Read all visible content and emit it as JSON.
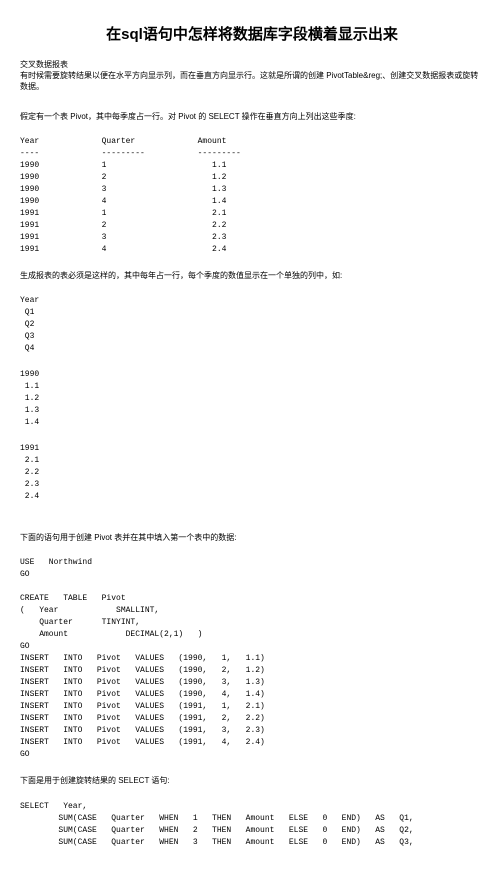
{
  "title": "在sql语句中怎样将数据库字段横着显示出来",
  "section_heading": "交叉数据报表",
  "intro": "有时候需要旋转结果以便在水平方向显示列，而在垂直方向显示行。这就是所谓的创建  PivotTable&reg;、创建交叉数据报表或旋转数据。",
  "para1": "假定有一个表   Pivot，其中每季度占一行。对   Pivot   的   SELECT   操作在垂直方向上列出这些季度:",
  "table_block": "Year             Quarter             Amount\n----             ---------           ---------\n1990             1                      1.1\n1990             2                      1.2\n1990             3                      1.3\n1990             4                      1.4\n1991             1                      2.1\n1991             2                      2.2\n1991             3                      2.3\n1991             4                      2.4",
  "para2": "生成报表的表必须是这样的，其中每年占一行，每个季度的数值显示在一个单独的列中，如:",
  "cols_block": "Year\n Q1\n Q2\n Q3\n Q4",
  "data1990": "1990\n 1.1\n 1.2\n 1.3\n 1.4",
  "data1991": "1991\n 2.1\n 2.2\n 2.3\n 2.4",
  "para3": "下面的语句用于创建   Pivot   表并在其中填入第一个表中的数据:",
  "sql_block": "USE   Northwind\nGO\n\nCREATE   TABLE   Pivot\n(   Year            SMALLINT,\n    Quarter      TINYINT,\n    Amount            DECIMAL(2,1)   )\nGO\nINSERT   INTO   Pivot   VALUES   (1990,   1,   1.1)\nINSERT   INTO   Pivot   VALUES   (1990,   2,   1.2)\nINSERT   INTO   Pivot   VALUES   (1990,   3,   1.3)\nINSERT   INTO   Pivot   VALUES   (1990,   4,   1.4)\nINSERT   INTO   Pivot   VALUES   (1991,   1,   2.1)\nINSERT   INTO   Pivot   VALUES   (1991,   2,   2.2)\nINSERT   INTO   Pivot   VALUES   (1991,   3,   2.3)\nINSERT   INTO   Pivot   VALUES   (1991,   4,   2.4)\nGO",
  "para4": "下面是用于创建旋转结果的   SELECT    语句:",
  "select_block": "SELECT   Year,\n        SUM(CASE   Quarter   WHEN   1   THEN   Amount   ELSE   0   END)   AS   Q1,\n        SUM(CASE   Quarter   WHEN   2   THEN   Amount   ELSE   0   END)   AS   Q2,\n        SUM(CASE   Quarter   WHEN   3   THEN   Amount   ELSE   0   END)   AS   Q3,"
}
